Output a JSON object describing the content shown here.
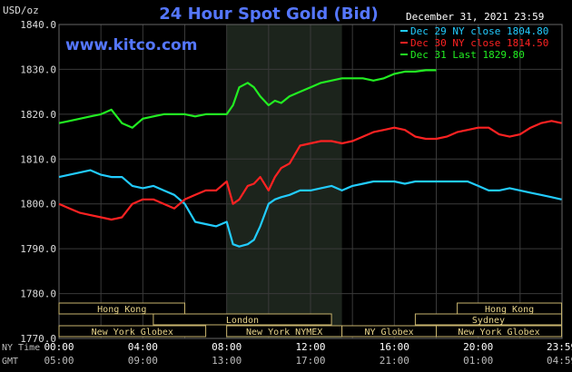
{
  "chart_data": {
    "type": "line",
    "title": "24 Hour Spot Gold (Bid)",
    "source": "www.kitco.com",
    "date_label": "December 31, 2021 23:59",
    "ylabel": "USD/oz",
    "ylim": [
      1770,
      1840
    ],
    "y_ticks": [
      "1840.0",
      "1830.0",
      "1820.0",
      "1810.0",
      "1800.0",
      "1790.0",
      "1780.0",
      "1770.0"
    ],
    "x_ticks_ny": [
      "00:00",
      "04:00",
      "08:00",
      "12:00",
      "16:00",
      "20:00",
      "23:59"
    ],
    "x_ticks_gmt": [
      "05:00",
      "09:00",
      "13:00",
      "17:00",
      "21:00",
      "01:00",
      "04:59"
    ],
    "row_labels": {
      "ny": "NY Time",
      "gmt": "GMT"
    },
    "shaded_hours": [
      8.0,
      13.5
    ],
    "grid": true,
    "legend_position": "top-right",
    "series": [
      {
        "name": "Dec 29 NY close 1804.80",
        "color": "#22ccff",
        "x": [
          0,
          0.5,
          1,
          1.5,
          2,
          2.5,
          3,
          3.5,
          4,
          4.5,
          5,
          5.5,
          6,
          6.5,
          7,
          7.5,
          8,
          8.3,
          8.6,
          9,
          9.3,
          9.6,
          10,
          10.3,
          10.6,
          11,
          11.5,
          12,
          12.5,
          13,
          13.5,
          14,
          14.5,
          15,
          15.5,
          16,
          16.5,
          17,
          17.5,
          18,
          18.5,
          19,
          19.5,
          20,
          20.5,
          21,
          21.5,
          22,
          22.5,
          23,
          23.5,
          23.98
        ],
        "values": [
          1806,
          1806.5,
          1807,
          1807.5,
          1806.5,
          1806,
          1806,
          1804,
          1803.5,
          1804,
          1803,
          1802,
          1800,
          1796,
          1795.5,
          1795,
          1796,
          1791,
          1790.5,
          1791,
          1792,
          1795,
          1800,
          1801,
          1801.5,
          1802,
          1803,
          1803,
          1803.5,
          1804,
          1803,
          1804,
          1804.5,
          1805,
          1805,
          1805,
          1804.5,
          1805,
          1805,
          1805,
          1805,
          1805,
          1805,
          1804,
          1803,
          1803,
          1803.5,
          1803,
          1802.5,
          1802,
          1801.5,
          1801
        ]
      },
      {
        "name": "Dec 30 NY close 1814.50",
        "color": "#ff2222",
        "x": [
          0,
          0.5,
          1,
          1.5,
          2,
          2.5,
          3,
          3.5,
          4,
          4.5,
          5,
          5.5,
          6,
          6.5,
          7,
          7.5,
          8,
          8.3,
          8.6,
          9,
          9.3,
          9.6,
          10,
          10.3,
          10.6,
          11,
          11.5,
          12,
          12.5,
          13,
          13.5,
          14,
          14.5,
          15,
          15.5,
          16,
          16.5,
          17,
          17.5,
          18,
          18.5,
          19,
          19.5,
          20,
          20.5,
          21,
          21.5,
          22,
          22.5,
          23,
          23.5,
          23.98
        ],
        "values": [
          1800,
          1799,
          1798,
          1797.5,
          1797,
          1796.5,
          1797,
          1800,
          1801,
          1801,
          1800,
          1799,
          1801,
          1802,
          1803,
          1803,
          1805,
          1800,
          1801,
          1804,
          1804.5,
          1806,
          1803,
          1806,
          1808,
          1809,
          1813,
          1813.5,
          1814,
          1814,
          1813.5,
          1814,
          1815,
          1816,
          1816.5,
          1817,
          1816.5,
          1815,
          1814.5,
          1814.5,
          1815,
          1816,
          1816.5,
          1817,
          1817,
          1815.5,
          1815,
          1815.5,
          1817,
          1818,
          1818.5,
          1818
        ]
      },
      {
        "name": "Dec 31 Last 1829.80",
        "color": "#22ee22",
        "x": [
          0,
          0.5,
          1,
          1.5,
          2,
          2.5,
          3,
          3.5,
          4,
          4.5,
          5,
          5.5,
          6,
          6.5,
          7,
          7.5,
          8,
          8.3,
          8.6,
          9,
          9.3,
          9.6,
          10,
          10.3,
          10.6,
          11,
          11.5,
          12,
          12.5,
          13,
          13.5,
          14,
          14.5,
          15,
          15.5,
          16,
          16.5,
          17,
          17.5,
          18
        ],
        "values": [
          1818,
          1818.5,
          1819,
          1819.5,
          1820,
          1821,
          1818,
          1817,
          1819,
          1819.5,
          1820,
          1820,
          1820,
          1819.5,
          1820,
          1820,
          1820,
          1822,
          1826,
          1827,
          1826,
          1824,
          1822,
          1823,
          1822.5,
          1824,
          1825,
          1826,
          1827,
          1827.5,
          1828,
          1828,
          1828,
          1827.5,
          1828,
          1829,
          1829.5,
          1829.5,
          1829.8,
          1829.8
        ]
      }
    ],
    "sessions": [
      {
        "label": "Hong Kong",
        "start": 0,
        "end": 6,
        "row": 0
      },
      {
        "label": "London",
        "start": 4.5,
        "end": 13,
        "row": 1
      },
      {
        "label": "New York Globex",
        "start": 0,
        "end": 7,
        "row": 2
      },
      {
        "label": "New York NYMEX",
        "start": 8,
        "end": 13.5,
        "row": 2
      },
      {
        "label": "NY Globex",
        "start": 13.5,
        "end": 18,
        "row": 2
      },
      {
        "label": "Hong Kong",
        "start": 19,
        "end": 23.98,
        "row": 0
      },
      {
        "label": "Sydney",
        "start": 17,
        "end": 23.98,
        "row": 1
      },
      {
        "label": "New York Globex",
        "start": 18,
        "end": 23.98,
        "row": 2
      }
    ]
  }
}
